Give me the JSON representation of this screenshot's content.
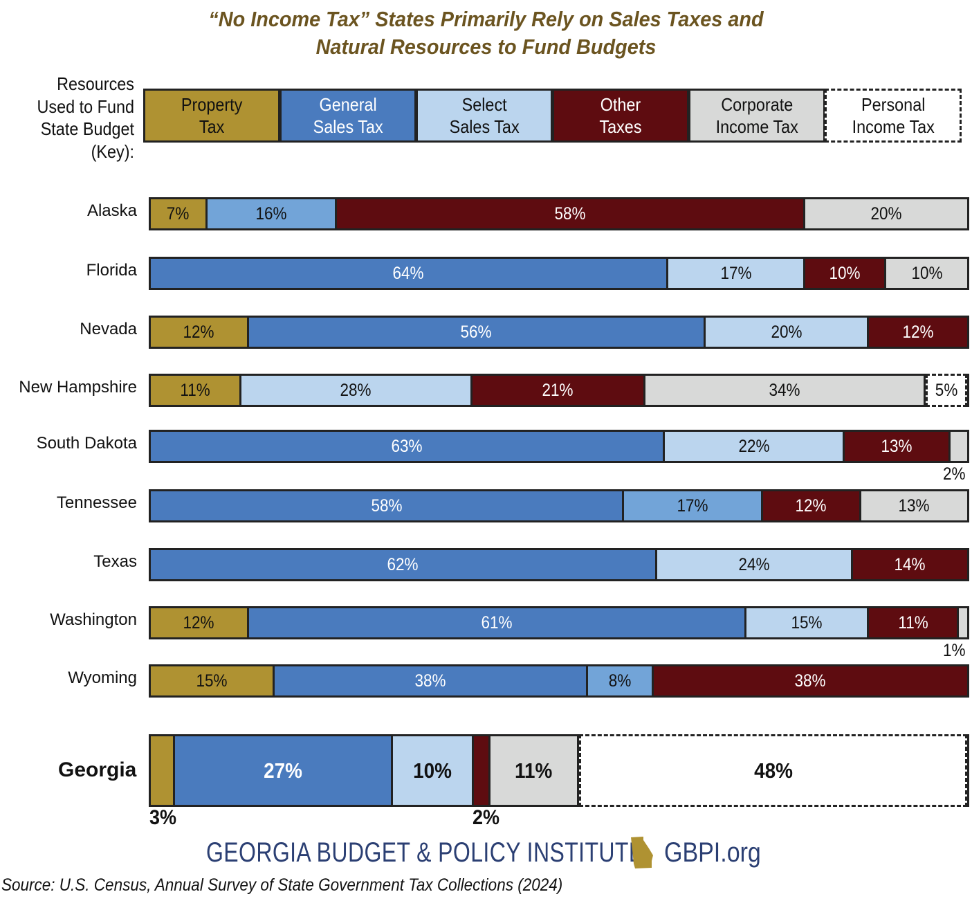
{
  "chart_data": {
    "type": "bar",
    "orientation": "horizontal-stacked-100",
    "title_line1": "“No Income Tax” States Primarily Rely on Sales Taxes and",
    "title_line2": "Natural Resources to Fund Budgets",
    "key_label": [
      "Resources",
      "Used to Fund",
      "State Budget",
      "(Key):"
    ],
    "legend": [
      {
        "key": "property",
        "line1": "Property",
        "line2": "Tax",
        "color": "#AF9232",
        "text_color": "#111111",
        "dashed": false
      },
      {
        "key": "general_sales",
        "line1": "General",
        "line2": "Sales Tax",
        "color": "#4A7BBE",
        "text_color": "#FFFFFF",
        "dashed": false
      },
      {
        "key": "select_sales",
        "line1": "Select",
        "line2": "Sales Tax",
        "color": "#BBD5EE",
        "text_color": "#111111",
        "dashed": false
      },
      {
        "key": "other",
        "line1": "Other",
        "line2": "Taxes",
        "color": "#5E0C10",
        "text_color": "#FFFFFF",
        "dashed": false
      },
      {
        "key": "corporate",
        "line1": "Corporate",
        "line2": "Income Tax",
        "color": "#D8D9D8",
        "text_color": "#111111",
        "dashed": false
      },
      {
        "key": "personal",
        "line1": "Personal",
        "line2": "Income Tax",
        "color": "#FFFFFF",
        "text_color": "#111111",
        "dashed": true
      }
    ],
    "alt_colors": {
      "medium_blue": "#72A4D8"
    },
    "states": [
      {
        "name": "Alaska",
        "segments": [
          {
            "cat": "property",
            "value": 7,
            "label": "7%"
          },
          {
            "cat": "select_sales",
            "value": 16,
            "label": "16%",
            "color": "#72A4D8"
          },
          {
            "cat": "other",
            "value": 58,
            "label": "58%"
          },
          {
            "cat": "corporate",
            "value": 20,
            "label": "20%"
          }
        ]
      },
      {
        "name": "Florida",
        "segments": [
          {
            "cat": "general_sales",
            "value": 64,
            "label": "64%"
          },
          {
            "cat": "select_sales",
            "value": 17,
            "label": "17%"
          },
          {
            "cat": "other",
            "value": 10,
            "label": "10%"
          },
          {
            "cat": "corporate",
            "value": 10,
            "label": "10%"
          }
        ]
      },
      {
        "name": "Nevada",
        "segments": [
          {
            "cat": "property",
            "value": 12,
            "label": "12%"
          },
          {
            "cat": "general_sales",
            "value": 56,
            "label": "56%"
          },
          {
            "cat": "select_sales",
            "value": 20,
            "label": "20%"
          },
          {
            "cat": "other",
            "value": 12,
            "label": "12%"
          }
        ]
      },
      {
        "name": "New Hampshire",
        "segments": [
          {
            "cat": "property",
            "value": 11,
            "label": "11%"
          },
          {
            "cat": "select_sales",
            "value": 28,
            "label": "28%"
          },
          {
            "cat": "other",
            "value": 21,
            "label": "21%"
          },
          {
            "cat": "corporate",
            "value": 34,
            "label": "34%"
          },
          {
            "cat": "personal",
            "value": 5,
            "label": "5%"
          }
        ]
      },
      {
        "name": "South Dakota",
        "segments": [
          {
            "cat": "general_sales",
            "value": 63,
            "label": "63%"
          },
          {
            "cat": "select_sales",
            "value": 22,
            "label": "22%"
          },
          {
            "cat": "other",
            "value": 13,
            "label": "13%"
          },
          {
            "cat": "corporate",
            "value": 2,
            "label": "2%",
            "outside": true
          }
        ]
      },
      {
        "name": "Tennessee",
        "segments": [
          {
            "cat": "general_sales",
            "value": 58,
            "label": "58%"
          },
          {
            "cat": "select_sales",
            "value": 17,
            "label": "17%",
            "color": "#72A4D8"
          },
          {
            "cat": "other",
            "value": 12,
            "label": "12%"
          },
          {
            "cat": "corporate",
            "value": 13,
            "label": "13%"
          }
        ]
      },
      {
        "name": "Texas",
        "segments": [
          {
            "cat": "general_sales",
            "value": 62,
            "label": "62%"
          },
          {
            "cat": "select_sales",
            "value": 24,
            "label": "24%"
          },
          {
            "cat": "other",
            "value": 14,
            "label": "14%"
          }
        ]
      },
      {
        "name": "Washington",
        "segments": [
          {
            "cat": "property",
            "value": 12,
            "label": "12%"
          },
          {
            "cat": "general_sales",
            "value": 61,
            "label": "61%"
          },
          {
            "cat": "select_sales",
            "value": 15,
            "label": "15%"
          },
          {
            "cat": "other",
            "value": 11,
            "label": "11%"
          },
          {
            "cat": "corporate",
            "value": 1,
            "label": "1%",
            "outside": true
          }
        ]
      },
      {
        "name": "Wyoming",
        "segments": [
          {
            "cat": "property",
            "value": 15,
            "label": "15%"
          },
          {
            "cat": "general_sales",
            "value": 38,
            "label": "38%"
          },
          {
            "cat": "select_sales",
            "value": 8,
            "label": "8%",
            "color": "#72A4D8"
          },
          {
            "cat": "other",
            "value": 38,
            "label": "38%"
          }
        ]
      }
    ],
    "georgia": {
      "name": "Georgia",
      "segments": [
        {
          "cat": "property",
          "value": 3,
          "label": "3%",
          "outside": true
        },
        {
          "cat": "general_sales",
          "value": 27,
          "label": "27%"
        },
        {
          "cat": "select_sales",
          "value": 10,
          "label": "10%"
        },
        {
          "cat": "other",
          "value": 2,
          "label": "2%",
          "outside": true
        },
        {
          "cat": "corporate",
          "value": 11,
          "label": "11%"
        },
        {
          "cat": "personal",
          "value": 48,
          "label": "48%"
        }
      ]
    },
    "xlabel": "",
    "ylabel": "",
    "grid": false
  },
  "footer": {
    "brand": "GEORGIA BUDGET & POLICY INSTITUTE",
    "site": "GBPI.org",
    "brand_color": "#2B3F73",
    "logo_icon": "georgia-state-shape-icon",
    "logo_color": "#AF9232",
    "source": "Source: U.S. Census, Annual Survey of State Government Tax Collections (2024)"
  }
}
